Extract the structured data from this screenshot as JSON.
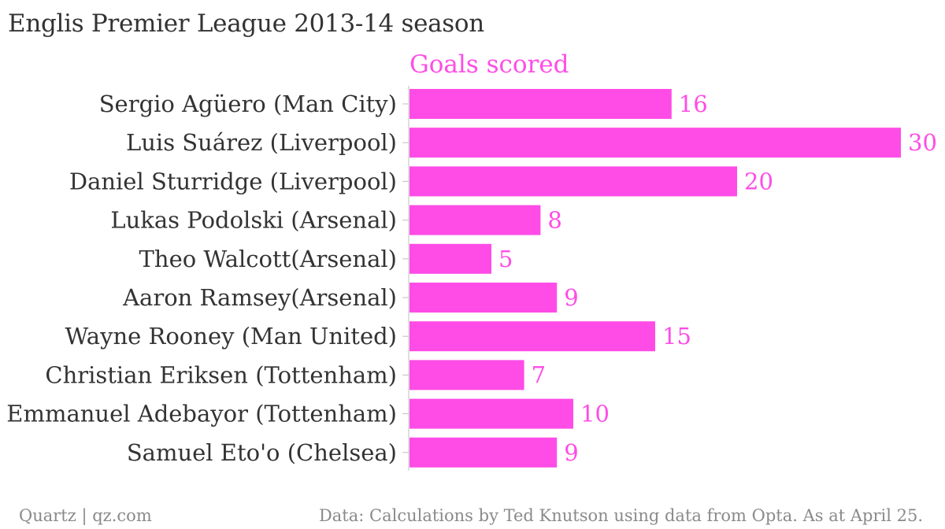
{
  "title": "Englis Premier League 2013-14 season",
  "footer": {
    "left": "Quartz | qz.com",
    "right": "Data: Calculations by Ted Knutson using data from Opta. As at April 25."
  },
  "colors": {
    "bar": "#ff4ce6",
    "text": "#333333",
    "muted": "#8a8a8a"
  },
  "chart_data": {
    "type": "bar",
    "orientation": "horizontal",
    "series": [
      {
        "name": "Goals scored",
        "values": [
          16,
          30,
          20,
          8,
          5,
          9,
          15,
          7,
          10,
          9
        ]
      }
    ],
    "categories": [
      "Sergio Agüero (Man City)",
      "Luis Suárez (Liverpool)",
      "Daniel Sturridge (Liverpool)",
      "Lukas Podolski (Arsenal)",
      "Theo Walcott(Arsenal)",
      "Aaron Ramsey(Arsenal)",
      "Wayne Rooney (Man United)",
      "Christian Eriksen (Tottenham)",
      "Emmanuel Adebayor (Tottenham)",
      "Samuel Eto'o (Chelsea)"
    ],
    "data_labels": [
      "16",
      "30",
      "20",
      "8",
      "5",
      "9",
      "15",
      "7",
      "10",
      "9"
    ],
    "xlim": [
      0,
      30
    ],
    "grid": false
  }
}
